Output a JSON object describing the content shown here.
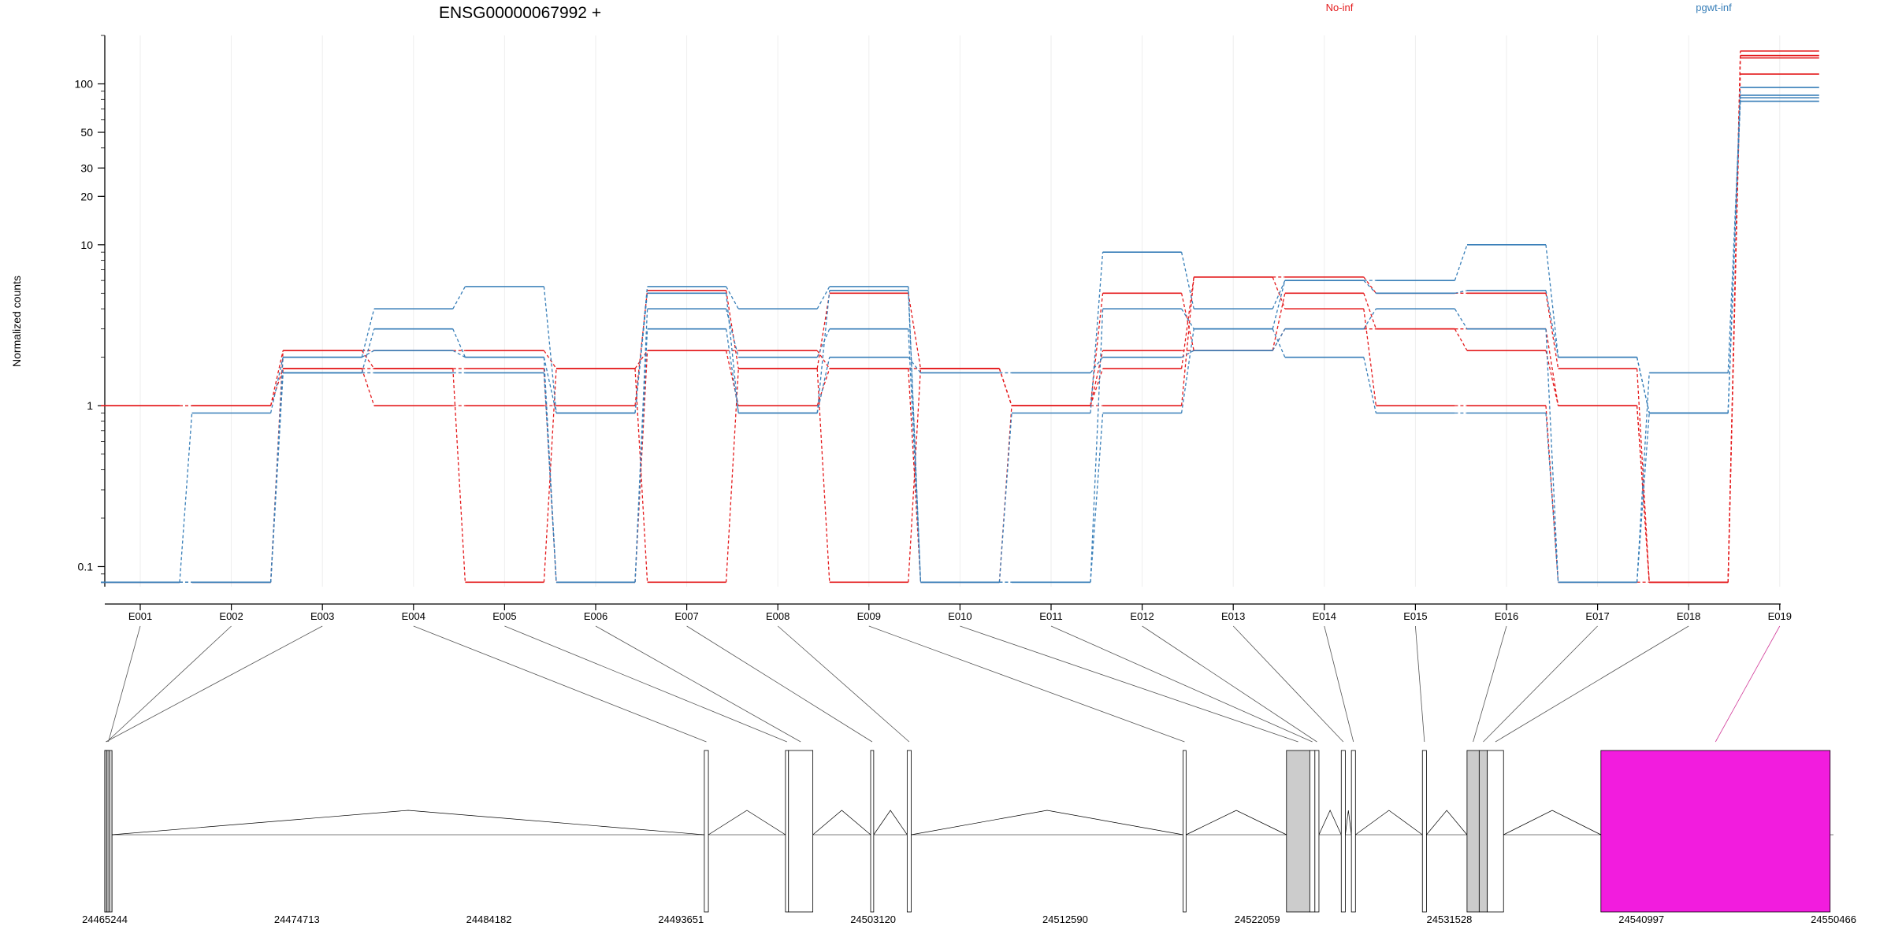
{
  "chart_data": {
    "type": "line",
    "title": "ENSG00000067992 +",
    "ylabel": "Normalized counts",
    "yscale": "log",
    "ylim": [
      0.075,
      200
    ],
    "y_ticks": [
      {
        "value": 0.1,
        "label": "0.1"
      },
      {
        "value": 1,
        "label": "1"
      },
      {
        "value": 10,
        "label": "10"
      },
      {
        "value": 20,
        "label": "20"
      },
      {
        "value": 30,
        "label": "30"
      },
      {
        "value": 50,
        "label": "50"
      },
      {
        "value": 100,
        "label": "100"
      }
    ],
    "legend": [
      "No-inf",
      "pgwt-inf"
    ],
    "group_colors": {
      "No-inf": "#e41a1c",
      "pgwt-inf": "#377eb8"
    },
    "categories": [
      "E001",
      "E002",
      "E003",
      "E004",
      "E005",
      "E006",
      "E007",
      "E008",
      "E009",
      "E010",
      "E011",
      "E012",
      "E013",
      "E014",
      "E015",
      "E016",
      "E017",
      "E018",
      "E019"
    ],
    "series": [
      {
        "group": "No-inf",
        "values": [
          1,
          1,
          2.2,
          2.2,
          2.2,
          1.7,
          2.2,
          2.2,
          1.7,
          1.7,
          1,
          2.2,
          2.2,
          3,
          3,
          3,
          1,
          0.08,
          160
        ]
      },
      {
        "group": "No-inf",
        "values": [
          1,
          1,
          1.7,
          1,
          1,
          1,
          5.2,
          1.7,
          5,
          1.7,
          1,
          1.7,
          6.3,
          6.3,
          5,
          5,
          1.7,
          0.08,
          145
        ]
      },
      {
        "group": "No-inf",
        "values": [
          0.08,
          0.08,
          2.2,
          1.7,
          1.7,
          0.08,
          2.2,
          1,
          1.7,
          0.08,
          1,
          5,
          2.2,
          5,
          3,
          2.2,
          1,
          0.08,
          150
        ]
      },
      {
        "group": "No-inf",
        "values": [
          0.08,
          0.08,
          1.7,
          1.7,
          0.08,
          1.7,
          0.08,
          1.7,
          0.08,
          1.7,
          1,
          1,
          6.3,
          4,
          1,
          1,
          0.08,
          0.08,
          115
        ]
      },
      {
        "group": "pgwt-inf",
        "values": [
          0.08,
          0.9,
          2,
          4,
          5.5,
          0.9,
          5.5,
          4,
          5.5,
          0.08,
          0.9,
          9,
          4,
          6,
          6,
          10,
          2,
          0.9,
          95
        ]
      },
      {
        "group": "pgwt-inf",
        "values": [
          0.08,
          0.08,
          1.6,
          3,
          2,
          0.08,
          4,
          2,
          3,
          0.08,
          0.08,
          4,
          3,
          6,
          5,
          5.2,
          2,
          0.9,
          85
        ]
      },
      {
        "group": "pgwt-inf",
        "values": [
          0.08,
          0.08,
          1.6,
          1.6,
          1.6,
          0.08,
          3,
          0.9,
          2,
          1.6,
          1.6,
          2,
          2.2,
          3,
          4,
          3,
          0.08,
          1.6,
          82
        ]
      },
      {
        "group": "pgwt-inf",
        "values": [
          0.08,
          0.08,
          2,
          2.2,
          2,
          0.9,
          5,
          0.9,
          5.2,
          0.08,
          0.08,
          0.9,
          3,
          2,
          0.9,
          0.9,
          0.08,
          0.9,
          78
        ]
      }
    ],
    "gene_model": {
      "genomic_range": [
        24465244,
        24550466
      ],
      "coordinate_ticks": [
        "24465244",
        "24474713",
        "24484182",
        "24493651",
        "24503120",
        "24512590",
        "24522059",
        "24531528",
        "24540997",
        "24550466"
      ],
      "exons": [
        {
          "id": "E001",
          "start": 24465244,
          "end": 24465600,
          "fill": "#cccccc"
        },
        {
          "id": "E002",
          "start": 24465244,
          "end": 24465450,
          "fill": "#cccccc"
        },
        {
          "id": "E003",
          "start": 24465244,
          "end": 24465350,
          "fill": "#cccccc"
        },
        {
          "id": "E004",
          "start": 24494800,
          "end": 24495000,
          "fill": "#ffffff"
        },
        {
          "id": "E005",
          "start": 24498800,
          "end": 24498950,
          "fill": "#ffffff"
        },
        {
          "id": "E006",
          "start": 24498950,
          "end": 24500150,
          "fill": "#ffffff"
        },
        {
          "id": "E007",
          "start": 24503000,
          "end": 24503150,
          "fill": "#ffffff"
        },
        {
          "id": "E008",
          "start": 24504800,
          "end": 24505000,
          "fill": "#ffffff"
        },
        {
          "id": "E009",
          "start": 24518400,
          "end": 24518550,
          "fill": "#ffffff"
        },
        {
          "id": "E010",
          "start": 24523500,
          "end": 24524650,
          "fill": "#cccccc"
        },
        {
          "id": "E011",
          "start": 24524650,
          "end": 24524900,
          "fill": "#ffffff"
        },
        {
          "id": "E012",
          "start": 24524900,
          "end": 24525100,
          "fill": "#ffffff"
        },
        {
          "id": "E013",
          "start": 24526200,
          "end": 24526400,
          "fill": "#ffffff"
        },
        {
          "id": "E014",
          "start": 24526700,
          "end": 24526900,
          "fill": "#ffffff"
        },
        {
          "id": "E015",
          "start": 24530200,
          "end": 24530400,
          "fill": "#ffffff"
        },
        {
          "id": "E016",
          "start": 24532400,
          "end": 24533000,
          "fill": "#cccccc"
        },
        {
          "id": "E017",
          "start": 24533000,
          "end": 24533400,
          "fill": "#cccccc"
        },
        {
          "id": "E018",
          "start": 24533400,
          "end": 24534200,
          "fill": "#ffffff"
        },
        {
          "id": "E019",
          "start": 24539000,
          "end": 24550300,
          "fill": "#f21cde"
        }
      ]
    }
  }
}
